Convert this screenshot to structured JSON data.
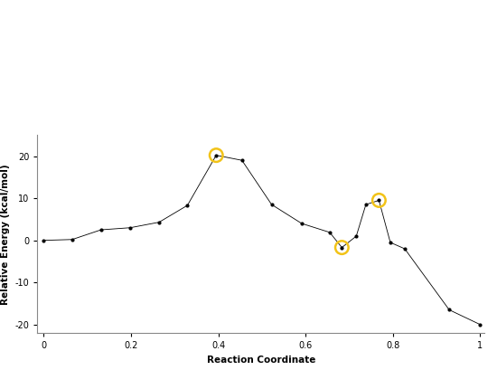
{
  "chart_data": {
    "type": "line",
    "x_label": "Reaction Coordinate",
    "y_label": "Relative Energy (kcal/mol)",
    "series": [
      {
        "type": "line",
        "color": "#000000",
        "marker": "o",
        "line_style": "solid",
        "x": [
          0,
          0.065,
          0.131,
          0.198,
          0.264,
          0.329,
          0.395,
          0.454,
          0.522,
          0.591,
          0.655,
          0.683,
          0.716,
          0.738,
          0.768,
          0.794,
          0.827,
          0.929,
          1.0
        ],
        "values": [
          0,
          0.2,
          2.5,
          3.0,
          4.3,
          8.3,
          20.2,
          19.0,
          8.5,
          4.0,
          1.9,
          -1.7,
          1.0,
          8.5,
          9.5,
          -0.5,
          -2.0,
          -16.5,
          -20.0
        ]
      },
      {
        "type": "scatter",
        "color": "#f2c318",
        "marker": "o",
        "x": [
          0.395,
          0.683,
          0.768
        ],
        "values": [
          20.2,
          -1.7,
          9.5
        ]
      }
    ],
    "xlim": [
      -0.015,
      1.01
    ],
    "ylim": [
      -22,
      25
    ],
    "xticks": [
      0,
      0.2,
      0.4,
      0.6,
      0.8,
      1
    ],
    "yticks": [
      -20,
      -10,
      0,
      10,
      20
    ],
    "grid": false
  }
}
